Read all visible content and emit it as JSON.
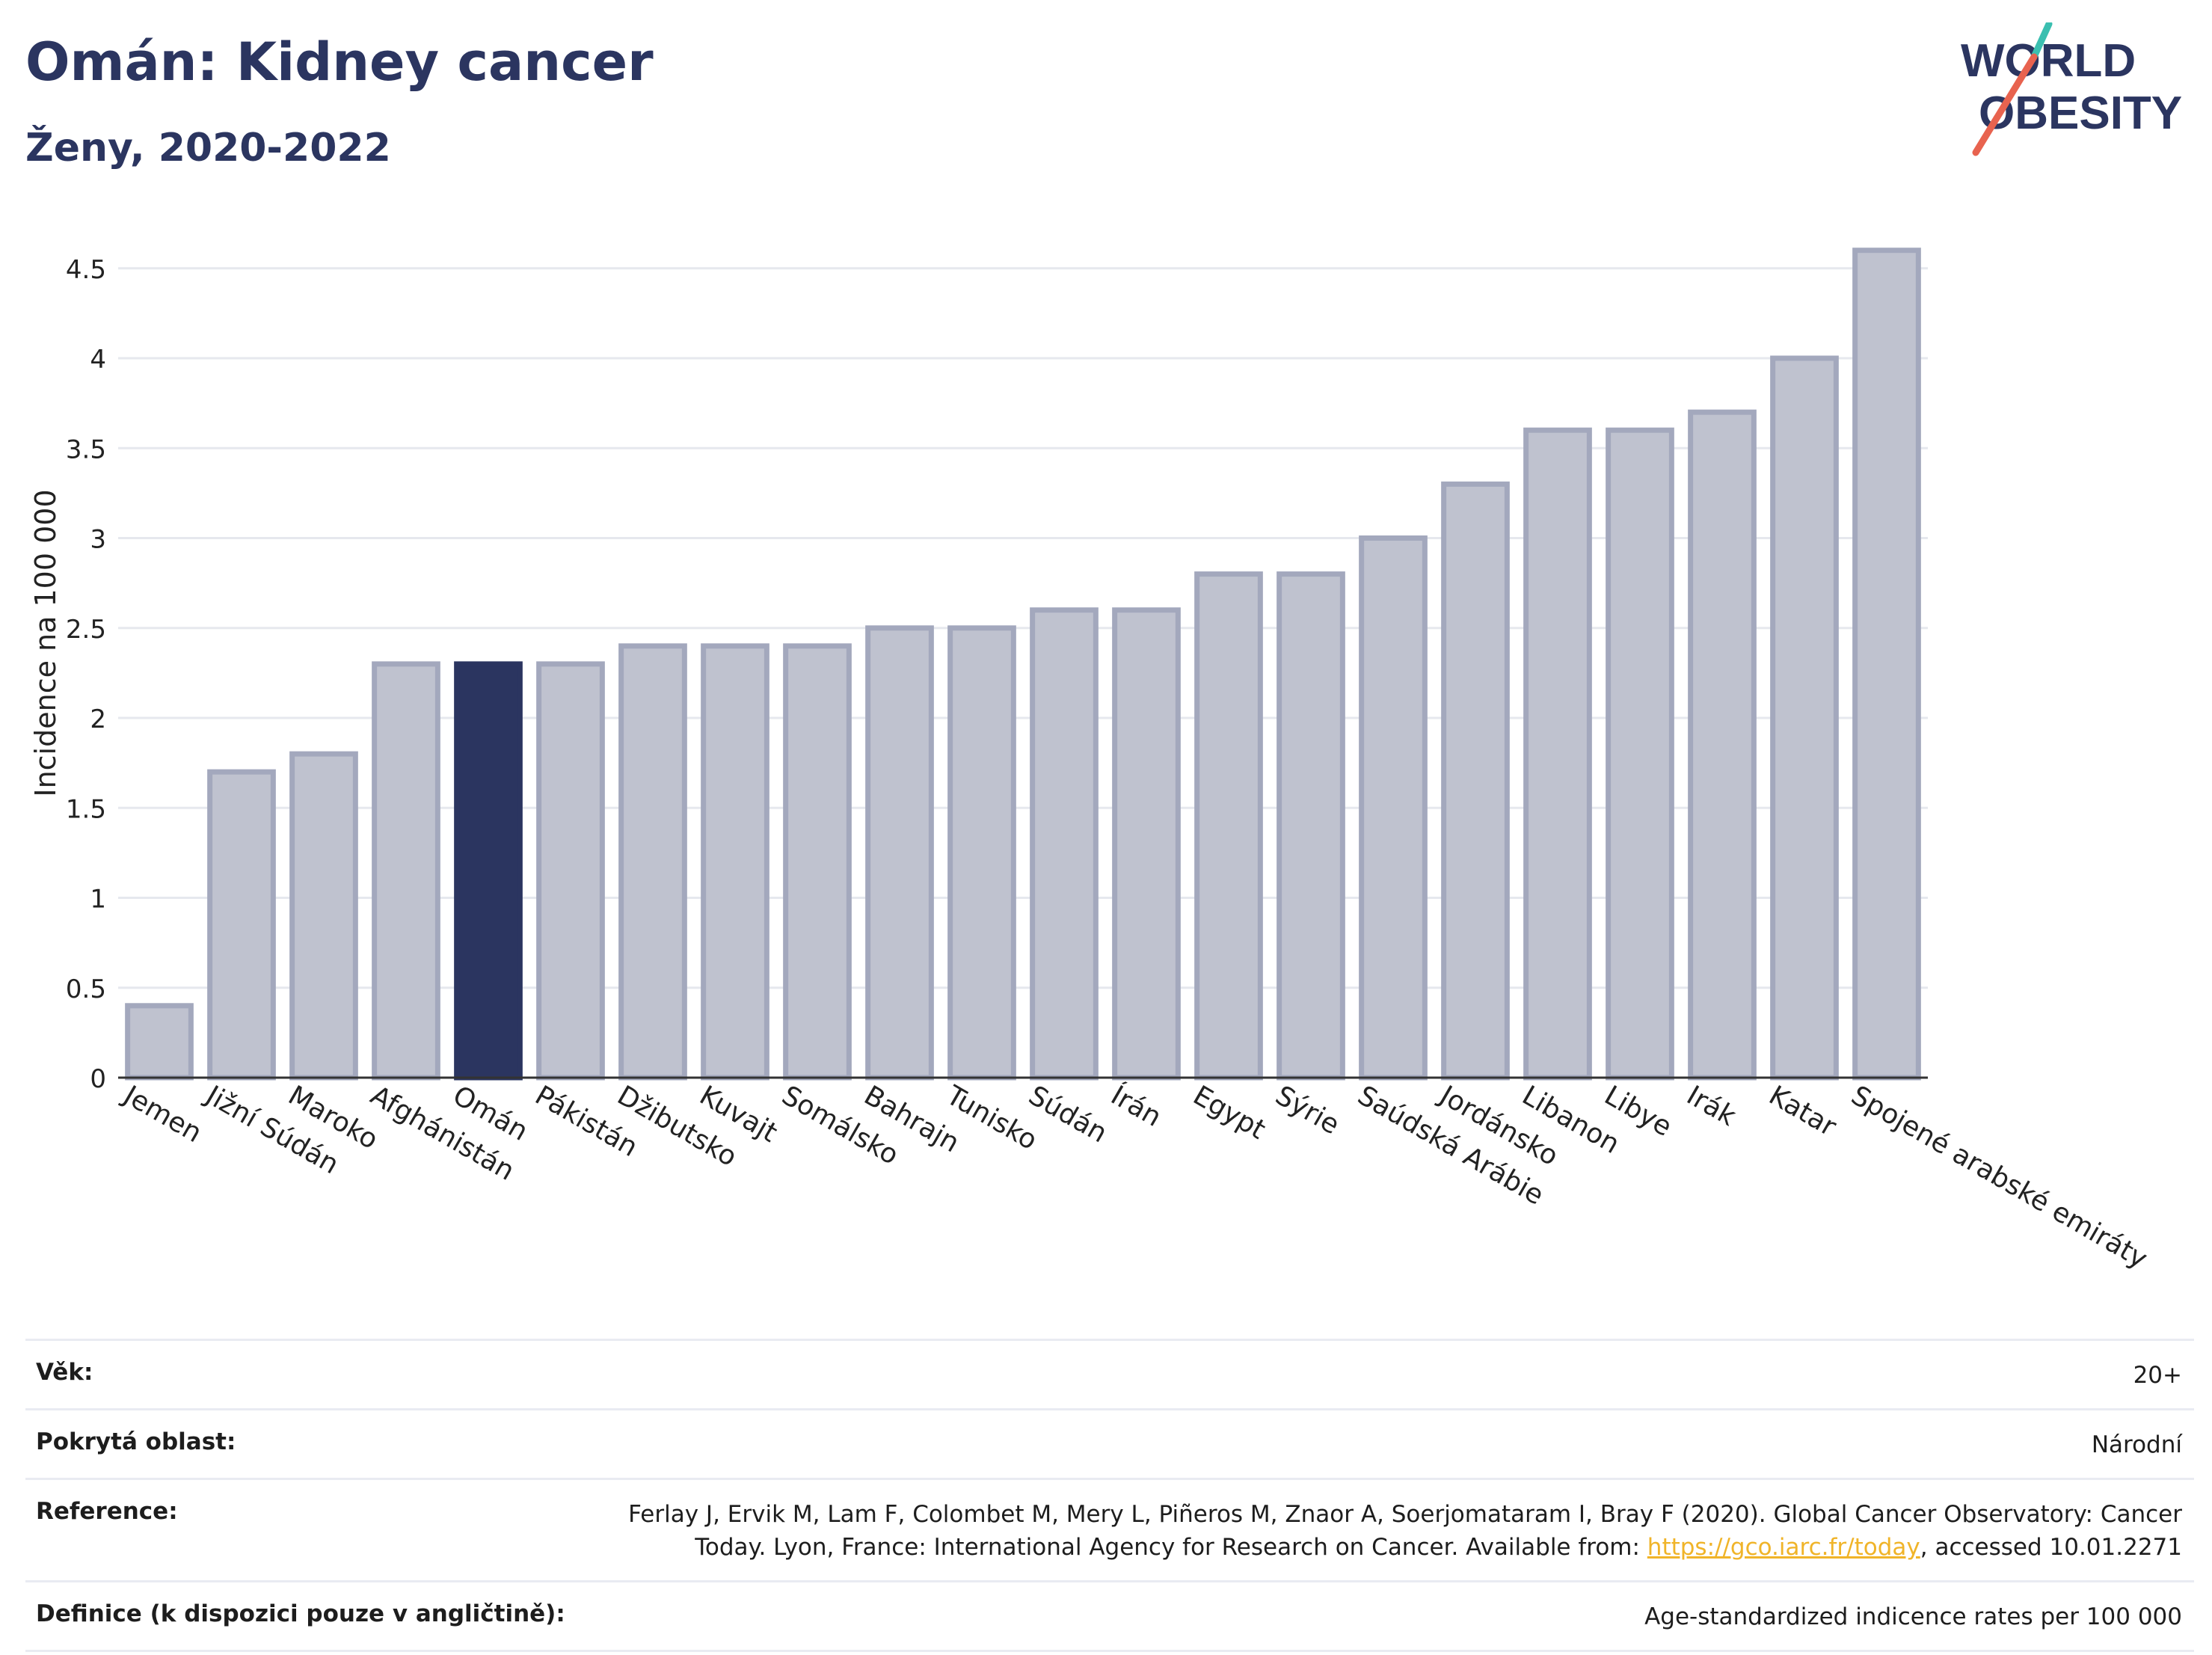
{
  "header": {
    "title": "Omán: Kidney cancer",
    "subtitle": "Ženy, 2020-2022"
  },
  "logo": {
    "line1": "WORLD",
    "line2": "OBESITY"
  },
  "colors": {
    "highlight": "#2b3560",
    "bar": "#bfc2cf",
    "bar_stroke": "#a3a8bd",
    "grid": "#e6e8ee",
    "accent_teal": "#3bbfb0",
    "accent_red": "#e8634f"
  },
  "chart_data": {
    "type": "bar",
    "ylabel": "Incidence na 100 000",
    "ylim": [
      0,
      4.8
    ],
    "yticks": [
      0,
      0.5,
      1,
      1.5,
      2,
      2.5,
      3,
      3.5,
      4,
      4.5
    ],
    "ytick_labels": [
      "0",
      "0.5",
      "1",
      "1.5",
      "2",
      "2.5",
      "3",
      "3.5",
      "4",
      "4.5"
    ],
    "grid": true,
    "highlight": "Omán",
    "categories": [
      "Jemen",
      "Jižní Súdán",
      "Maroko",
      "Afghánistán",
      "Omán",
      "Pákistán",
      "Džibutsko",
      "Kuvajt",
      "Somálsko",
      "Bahrajn",
      "Tunisko",
      "Súdán",
      "Írán",
      "Egypt",
      "Sýrie",
      "Saúdská Arábie",
      "Jordánsko",
      "Libanon",
      "Libye",
      "Irák",
      "Katar",
      "Spojené arabské emiráty"
    ],
    "values": [
      0.4,
      1.7,
      1.8,
      2.3,
      2.3,
      2.3,
      2.4,
      2.4,
      2.4,
      2.5,
      2.5,
      2.6,
      2.6,
      2.8,
      2.8,
      3.0,
      3.3,
      3.6,
      3.6,
      3.7,
      4.0,
      4.6
    ]
  },
  "meta": {
    "age_label": "Věk:",
    "age_value": "20+",
    "area_label": "Pokrytá oblast:",
    "area_value": "Národní",
    "ref_label": "Reference:",
    "ref_text_1": "Ferlay J, Ervik M, Lam F, Colombet M, Mery L, Piñeros M, Znaor A, Soerjomataram I, Bray F (2020). Global Cancer Observatory: Cancer",
    "ref_text_2": "Today. Lyon, France: International Agency for Research on Cancer. Available from: ",
    "ref_link": "https://gco.iarc.fr/today",
    "ref_text_3": ", accessed 10.01.2271",
    "def_label": "Definice (k dispozici pouze v angličtině):",
    "def_value": "Age-standardized indicence rates per 100 000"
  }
}
